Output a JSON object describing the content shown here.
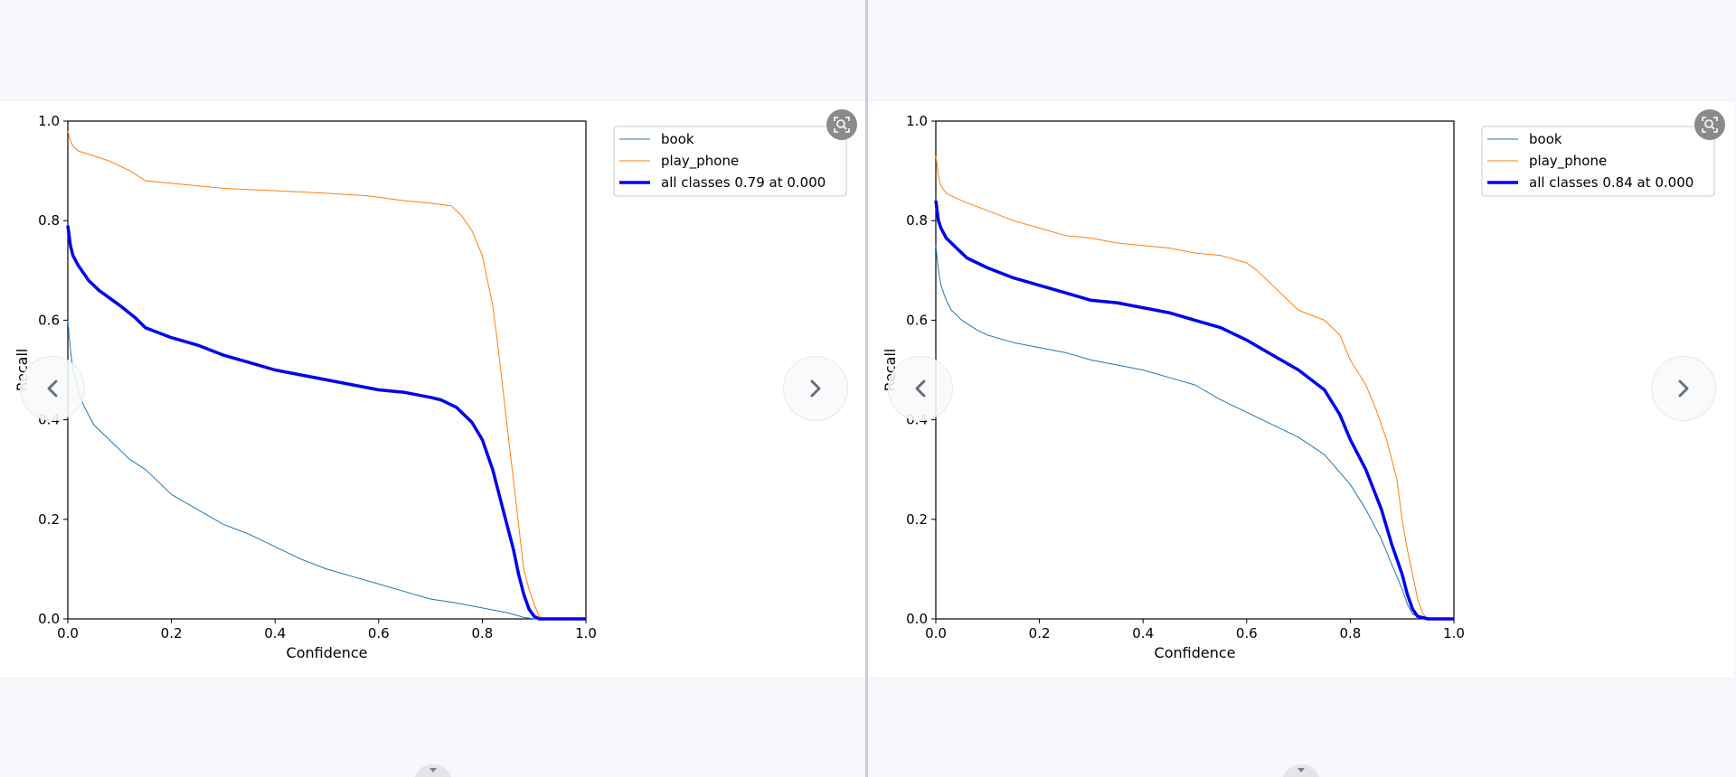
{
  "panes": [
    {
      "id": "left",
      "chart_data": {
        "type": "line",
        "title": "",
        "xlabel": "Confidence",
        "ylabel": "Recall",
        "xlim": [
          0,
          1
        ],
        "ylim": [
          0,
          1
        ],
        "xticks": [
          "0.0",
          "0.2",
          "0.4",
          "0.6",
          "0.8",
          "1.0"
        ],
        "yticks": [
          "0.0",
          "0.2",
          "0.4",
          "0.6",
          "0.8",
          "1.0"
        ],
        "grid": false,
        "legend_position": "outside top-right",
        "series": [
          {
            "name": "book",
            "color": "#1f77b4",
            "width": 1,
            "points": [
              [
                0,
                0.6
              ],
              [
                0.005,
                0.54
              ],
              [
                0.01,
                0.5
              ],
              [
                0.02,
                0.46
              ],
              [
                0.03,
                0.43
              ],
              [
                0.04,
                0.41
              ],
              [
                0.05,
                0.39
              ],
              [
                0.07,
                0.37
              ],
              [
                0.1,
                0.34
              ],
              [
                0.12,
                0.32
              ],
              [
                0.15,
                0.3
              ],
              [
                0.18,
                0.27
              ],
              [
                0.2,
                0.25
              ],
              [
                0.25,
                0.22
              ],
              [
                0.3,
                0.19
              ],
              [
                0.35,
                0.17
              ],
              [
                0.4,
                0.145
              ],
              [
                0.45,
                0.12
              ],
              [
                0.5,
                0.1
              ],
              [
                0.55,
                0.085
              ],
              [
                0.6,
                0.07
              ],
              [
                0.65,
                0.055
              ],
              [
                0.7,
                0.04
              ],
              [
                0.75,
                0.032
              ],
              [
                0.8,
                0.022
              ],
              [
                0.85,
                0.012
              ],
              [
                0.88,
                0.003
              ],
              [
                0.9,
                0.0
              ],
              [
                1.0,
                0.0
              ]
            ]
          },
          {
            "name": "play_phone",
            "color": "#ff7f0e",
            "width": 1,
            "points": [
              [
                0,
                0.98
              ],
              [
                0.005,
                0.96
              ],
              [
                0.01,
                0.95
              ],
              [
                0.02,
                0.94
              ],
              [
                0.05,
                0.93
              ],
              [
                0.08,
                0.92
              ],
              [
                0.12,
                0.9
              ],
              [
                0.15,
                0.88
              ],
              [
                0.2,
                0.875
              ],
              [
                0.3,
                0.865
              ],
              [
                0.4,
                0.86
              ],
              [
                0.5,
                0.855
              ],
              [
                0.58,
                0.85
              ],
              [
                0.65,
                0.84
              ],
              [
                0.7,
                0.835
              ],
              [
                0.74,
                0.83
              ],
              [
                0.76,
                0.81
              ],
              [
                0.78,
                0.78
              ],
              [
                0.8,
                0.73
              ],
              [
                0.81,
                0.68
              ],
              [
                0.82,
                0.63
              ],
              [
                0.83,
                0.55
              ],
              [
                0.84,
                0.46
              ],
              [
                0.85,
                0.37
              ],
              [
                0.86,
                0.28
              ],
              [
                0.87,
                0.19
              ],
              [
                0.88,
                0.1
              ],
              [
                0.89,
                0.06
              ],
              [
                0.9,
                0.03
              ],
              [
                0.91,
                0.005
              ],
              [
                0.92,
                0.0
              ],
              [
                1.0,
                0.0
              ]
            ]
          },
          {
            "name": "all classes 0.79 at 0.000",
            "color": "#0000ee",
            "width": 3.5,
            "points": [
              [
                0,
                0.79
              ],
              [
                0.005,
                0.75
              ],
              [
                0.01,
                0.73
              ],
              [
                0.02,
                0.71
              ],
              [
                0.04,
                0.68
              ],
              [
                0.06,
                0.66
              ],
              [
                0.1,
                0.63
              ],
              [
                0.13,
                0.605
              ],
              [
                0.15,
                0.585
              ],
              [
                0.2,
                0.565
              ],
              [
                0.25,
                0.55
              ],
              [
                0.3,
                0.53
              ],
              [
                0.35,
                0.515
              ],
              [
                0.4,
                0.5
              ],
              [
                0.45,
                0.49
              ],
              [
                0.5,
                0.48
              ],
              [
                0.55,
                0.47
              ],
              [
                0.6,
                0.46
              ],
              [
                0.65,
                0.455
              ],
              [
                0.7,
                0.445
              ],
              [
                0.72,
                0.44
              ],
              [
                0.75,
                0.425
              ],
              [
                0.78,
                0.395
              ],
              [
                0.8,
                0.36
              ],
              [
                0.82,
                0.3
              ],
              [
                0.84,
                0.22
              ],
              [
                0.86,
                0.14
              ],
              [
                0.87,
                0.09
              ],
              [
                0.88,
                0.05
              ],
              [
                0.89,
                0.02
              ],
              [
                0.9,
                0.005
              ],
              [
                0.91,
                0.0
              ],
              [
                1.0,
                0.0
              ]
            ]
          }
        ]
      }
    },
    {
      "id": "right",
      "chart_data": {
        "type": "line",
        "title": "",
        "xlabel": "Confidence",
        "ylabel": "Recall",
        "xlim": [
          0,
          1
        ],
        "ylim": [
          0,
          1
        ],
        "xticks": [
          "0.0",
          "0.2",
          "0.4",
          "0.6",
          "0.8",
          "1.0"
        ],
        "yticks": [
          "0.0",
          "0.2",
          "0.4",
          "0.6",
          "0.8",
          "1.0"
        ],
        "grid": false,
        "legend_position": "outside top-right",
        "series": [
          {
            "name": "book",
            "color": "#1f77b4",
            "width": 1,
            "points": [
              [
                0,
                0.75
              ],
              [
                0.005,
                0.7
              ],
              [
                0.01,
                0.67
              ],
              [
                0.02,
                0.64
              ],
              [
                0.03,
                0.62
              ],
              [
                0.05,
                0.6
              ],
              [
                0.08,
                0.58
              ],
              [
                0.1,
                0.57
              ],
              [
                0.15,
                0.555
              ],
              [
                0.2,
                0.545
              ],
              [
                0.25,
                0.535
              ],
              [
                0.3,
                0.52
              ],
              [
                0.35,
                0.51
              ],
              [
                0.4,
                0.5
              ],
              [
                0.45,
                0.485
              ],
              [
                0.5,
                0.47
              ],
              [
                0.55,
                0.44
              ],
              [
                0.6,
                0.415
              ],
              [
                0.65,
                0.39
              ],
              [
                0.7,
                0.365
              ],
              [
                0.75,
                0.33
              ],
              [
                0.8,
                0.27
              ],
              [
                0.83,
                0.22
              ],
              [
                0.86,
                0.16
              ],
              [
                0.88,
                0.11
              ],
              [
                0.9,
                0.06
              ],
              [
                0.91,
                0.03
              ],
              [
                0.92,
                0.01
              ],
              [
                0.94,
                0.0
              ],
              [
                1.0,
                0.0
              ]
            ]
          },
          {
            "name": "play_phone",
            "color": "#ff7f0e",
            "width": 1,
            "points": [
              [
                0,
                0.93
              ],
              [
                0.005,
                0.89
              ],
              [
                0.01,
                0.87
              ],
              [
                0.02,
                0.855
              ],
              [
                0.05,
                0.84
              ],
              [
                0.1,
                0.82
              ],
              [
                0.15,
                0.8
              ],
              [
                0.2,
                0.785
              ],
              [
                0.25,
                0.77
              ],
              [
                0.3,
                0.765
              ],
              [
                0.35,
                0.755
              ],
              [
                0.4,
                0.75
              ],
              [
                0.45,
                0.745
              ],
              [
                0.5,
                0.735
              ],
              [
                0.55,
                0.73
              ],
              [
                0.6,
                0.715
              ],
              [
                0.62,
                0.7
              ],
              [
                0.65,
                0.67
              ],
              [
                0.68,
                0.64
              ],
              [
                0.7,
                0.62
              ],
              [
                0.75,
                0.6
              ],
              [
                0.78,
                0.57
              ],
              [
                0.8,
                0.52
              ],
              [
                0.83,
                0.47
              ],
              [
                0.85,
                0.42
              ],
              [
                0.87,
                0.36
              ],
              [
                0.89,
                0.28
              ],
              [
                0.9,
                0.2
              ],
              [
                0.91,
                0.14
              ],
              [
                0.92,
                0.09
              ],
              [
                0.93,
                0.04
              ],
              [
                0.94,
                0.01
              ],
              [
                0.95,
                0.0
              ],
              [
                1.0,
                0.0
              ]
            ]
          },
          {
            "name": "all classes 0.84 at 0.000",
            "color": "#0000ee",
            "width": 3.5,
            "points": [
              [
                0,
                0.84
              ],
              [
                0.005,
                0.8
              ],
              [
                0.01,
                0.785
              ],
              [
                0.02,
                0.765
              ],
              [
                0.04,
                0.745
              ],
              [
                0.06,
                0.725
              ],
              [
                0.1,
                0.705
              ],
              [
                0.15,
                0.685
              ],
              [
                0.2,
                0.67
              ],
              [
                0.25,
                0.655
              ],
              [
                0.3,
                0.64
              ],
              [
                0.35,
                0.635
              ],
              [
                0.4,
                0.625
              ],
              [
                0.45,
                0.615
              ],
              [
                0.5,
                0.6
              ],
              [
                0.55,
                0.585
              ],
              [
                0.6,
                0.56
              ],
              [
                0.65,
                0.53
              ],
              [
                0.7,
                0.5
              ],
              [
                0.75,
                0.46
              ],
              [
                0.78,
                0.41
              ],
              [
                0.8,
                0.36
              ],
              [
                0.83,
                0.3
              ],
              [
                0.86,
                0.22
              ],
              [
                0.88,
                0.15
              ],
              [
                0.9,
                0.09
              ],
              [
                0.91,
                0.05
              ],
              [
                0.92,
                0.02
              ],
              [
                0.93,
                0.005
              ],
              [
                0.95,
                0.0
              ],
              [
                1.0,
                0.0
              ]
            ]
          }
        ]
      }
    }
  ],
  "icons": {
    "prev": "chevron-left-icon",
    "next": "chevron-right-icon",
    "zoom": "zoom-reset-icon",
    "collapse": "caret-down-icon"
  }
}
